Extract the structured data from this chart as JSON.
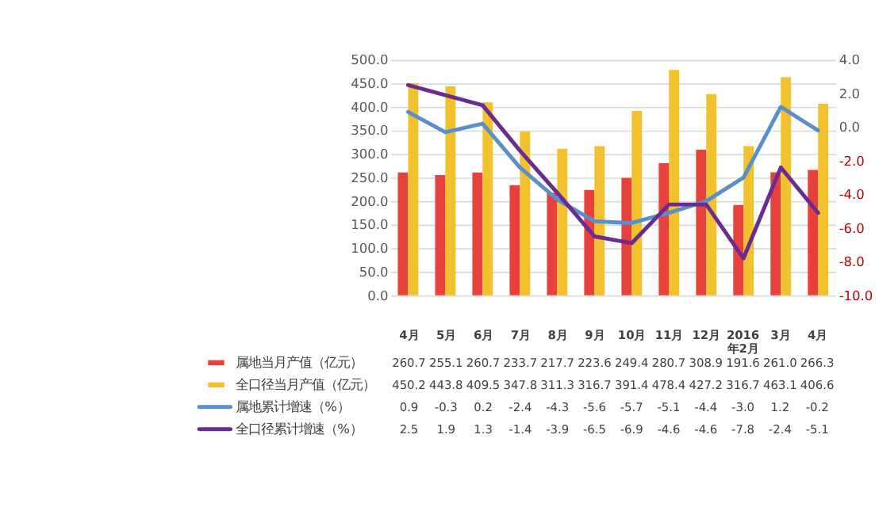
{
  "chart_data": {
    "type": "bar",
    "categories": [
      "4月",
      "5月",
      "6月",
      "7月",
      "8月",
      "9月",
      "10月",
      "11月",
      "12月",
      "2016年2月",
      "3月",
      "4月"
    ],
    "series": [
      {
        "name": "属地当月产值（亿元）",
        "color": "#e8403a",
        "values": [
          260.7,
          255.1,
          260.7,
          233.7,
          217.7,
          223.6,
          249.4,
          280.7,
          308.9,
          191.6,
          261.0,
          266.3
        ],
        "value_labels": [
          "260.7",
          "255.1",
          "260.7",
          "233.7",
          "217.7",
          "223.6",
          "249.4",
          "280.7",
          "308.9",
          "191.6",
          "261.0",
          "266.3"
        ]
      },
      {
        "name": "全口径当月产值（亿元）",
        "color": "#f2c12e",
        "values": [
          450.2,
          443.8,
          409.5,
          347.8,
          311.3,
          316.7,
          391.4,
          478.4,
          427.2,
          316.7,
          463.1,
          406.6
        ],
        "value_labels": [
          "450.2",
          "443.8",
          "409.5",
          "347.8",
          "311.3",
          "316.7",
          "391.4",
          "478.4",
          "427.2",
          "316.7",
          "463.1",
          "406.6"
        ]
      },
      {
        "name": "属地累计增速（%）",
        "type": "line",
        "axis": "y2",
        "color": "#5b8fc9",
        "values": [
          0.9,
          -0.3,
          0.2,
          -2.4,
          -4.3,
          -5.6,
          -5.7,
          -5.1,
          -4.4,
          -3.0,
          1.2,
          -0.2
        ],
        "value_labels": [
          "0.9",
          "-0.3",
          "0.2",
          "-2.4",
          "-4.3",
          "-5.6",
          "-5.7",
          "-5.1",
          "-4.4",
          "-3.0",
          "1.2",
          "-0.2"
        ]
      },
      {
        "name": "全口径累计增速（%）",
        "type": "line",
        "axis": "y2",
        "color": "#6a2c91",
        "values": [
          2.5,
          1.9,
          1.3,
          -1.4,
          -3.9,
          -6.5,
          -6.9,
          -4.6,
          -4.6,
          -7.8,
          -2.4,
          -5.1
        ],
        "value_labels": [
          "2.5",
          "1.9",
          "1.3",
          "-1.4",
          "-3.9",
          "-6.5",
          "-6.9",
          "-4.6",
          "-4.6",
          "-7.8",
          "-2.4",
          "-5.1"
        ]
      }
    ],
    "ylim": [
      0,
      500
    ],
    "yticks": [
      {
        "value": 0,
        "label": "0.0"
      },
      {
        "value": 50,
        "label": "50.0"
      },
      {
        "value": 100,
        "label": "100.0"
      },
      {
        "value": 150,
        "label": "150.0"
      },
      {
        "value": 200,
        "label": "200.0"
      },
      {
        "value": 250,
        "label": "250.0"
      },
      {
        "value": 300,
        "label": "300.0"
      },
      {
        "value": 350,
        "label": "350.0"
      },
      {
        "value": 400,
        "label": "400.0"
      },
      {
        "value": 450,
        "label": "450.0"
      },
      {
        "value": 500,
        "label": "500.0"
      }
    ],
    "y2lim": [
      -10,
      4
    ],
    "y2ticks": [
      {
        "value": -10,
        "label": "-10.0"
      },
      {
        "value": -8,
        "label": "-8.0"
      },
      {
        "value": -6,
        "label": "-6.0"
      },
      {
        "value": -4,
        "label": "-4.0"
      },
      {
        "value": -2,
        "label": "-2.0"
      },
      {
        "value": 0,
        "label": "0.0"
      },
      {
        "value": 2,
        "label": "2.0"
      },
      {
        "value": 4,
        "label": "4.0"
      }
    ],
    "grid": "y",
    "legend": "bottom"
  }
}
